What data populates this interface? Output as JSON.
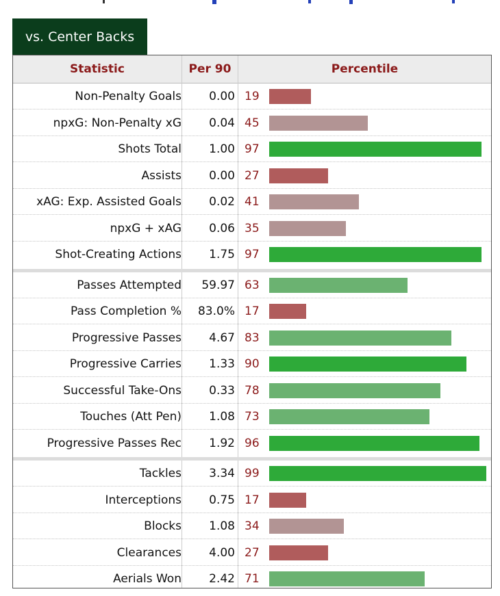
{
  "tab_label": "vs. Center Backs",
  "headers": {
    "statistic": "Statistic",
    "per90": "Per 90",
    "percentile": "Percentile"
  },
  "colors": {
    "tab_bg": "#0b3d1c",
    "header_text": "#8b1a1a",
    "high": "#2eaa39",
    "mid_high": "#6bb271",
    "low": "#b05c5c",
    "mid_low": "#b29494"
  },
  "chart_data": {
    "type": "table",
    "columns": [
      "Statistic",
      "Per 90",
      "Percentile"
    ],
    "percentile_range": [
      0,
      100
    ],
    "groups": [
      [
        {
          "stat": "Non-Penalty Goals",
          "per90": "0.00",
          "pct": 19
        },
        {
          "stat": "npxG: Non-Penalty xG",
          "per90": "0.04",
          "pct": 45
        },
        {
          "stat": "Shots Total",
          "per90": "1.00",
          "pct": 97
        },
        {
          "stat": "Assists",
          "per90": "0.00",
          "pct": 27
        },
        {
          "stat": "xAG: Exp. Assisted Goals",
          "per90": "0.02",
          "pct": 41
        },
        {
          "stat": "npxG + xAG",
          "per90": "0.06",
          "pct": 35
        },
        {
          "stat": "Shot-Creating Actions",
          "per90": "1.75",
          "pct": 97
        }
      ],
      [
        {
          "stat": "Passes Attempted",
          "per90": "59.97",
          "pct": 63
        },
        {
          "stat": "Pass Completion %",
          "per90": "83.0%",
          "pct": 17
        },
        {
          "stat": "Progressive Passes",
          "per90": "4.67",
          "pct": 83
        },
        {
          "stat": "Progressive Carries",
          "per90": "1.33",
          "pct": 90
        },
        {
          "stat": "Successful Take-Ons",
          "per90": "0.33",
          "pct": 78
        },
        {
          "stat": "Touches (Att Pen)",
          "per90": "1.08",
          "pct": 73
        },
        {
          "stat": "Progressive Passes Rec",
          "per90": "1.92",
          "pct": 96
        }
      ],
      [
        {
          "stat": "Tackles",
          "per90": "3.34",
          "pct": 99
        },
        {
          "stat": "Interceptions",
          "per90": "0.75",
          "pct": 17
        },
        {
          "stat": "Blocks",
          "per90": "1.08",
          "pct": 34
        },
        {
          "stat": "Clearances",
          "per90": "4.00",
          "pct": 27
        },
        {
          "stat": "Aerials Won",
          "per90": "2.42",
          "pct": 71
        }
      ]
    ]
  }
}
